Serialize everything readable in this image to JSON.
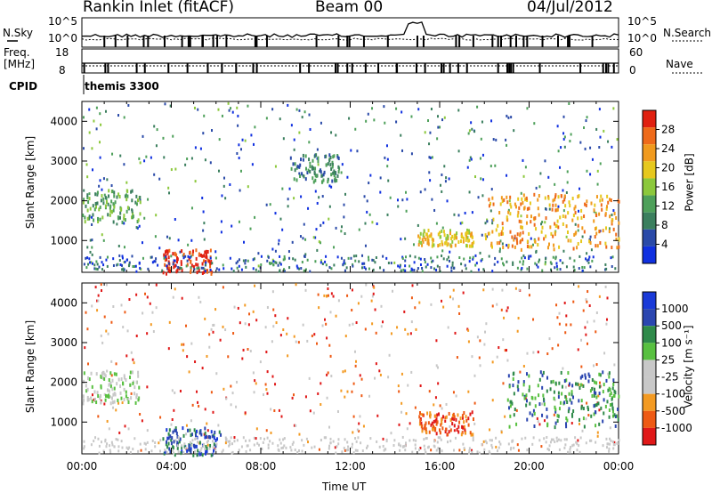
{
  "header": {
    "station": "Rankin Inlet (fitACF)",
    "beam": "Beam 00",
    "date": "04/Jul/2012"
  },
  "strip1": {
    "left_label": "N.Sky",
    "right_label": "N.Search",
    "left_ticks": [
      "10^5",
      "10^0"
    ],
    "right_ticks": [
      "10^5",
      "10^0"
    ]
  },
  "strip2": {
    "left_label_line1": "Freq.",
    "left_label_line2": "[MHz]",
    "right_label": "Nave",
    "left_ticks": [
      "18",
      "8"
    ],
    "right_ticks": [
      "60",
      "0"
    ]
  },
  "cpid": {
    "label": "CPID",
    "value": "themis 3300"
  },
  "colors": {
    "power_scale": [
      "#1030e0",
      "#2a4aa8",
      "#3b7f5e",
      "#4ea05a",
      "#8cc83c",
      "#e6c81e",
      "#f09a1e",
      "#ee6a1a",
      "#e02010"
    ],
    "velocity_scale": [
      "#e01818",
      "#ee5a14",
      "#f39a22",
      "#c8c8c8",
      "#c8c8c8",
      "#58c040",
      "#2f8a4a",
      "#2b46b0",
      "#1a3ad8"
    ]
  },
  "chart_data": [
    {
      "type": "heatmap",
      "panel": "power",
      "ylabel": "Slant Range [km]",
      "yticks": [
        "1000",
        "2000",
        "3000",
        "4000"
      ],
      "ylim": [
        200,
        4500
      ],
      "xlim_hours": [
        0,
        24
      ],
      "colorbar_label": "Power [dB]",
      "colorbar_ticks": [
        "4",
        "8",
        "12",
        "16",
        "20",
        "24",
        "28"
      ],
      "features": [
        {
          "t0": 0.0,
          "t1": 2.6,
          "r0": 1500,
          "r1": 2300,
          "level": 3
        },
        {
          "t0": 3.6,
          "t1": 5.8,
          "r0": 200,
          "r1": 800,
          "level": 8
        },
        {
          "t0": 9.3,
          "t1": 11.5,
          "r0": 2500,
          "r1": 3200,
          "level": 2
        },
        {
          "t0": 15.0,
          "t1": 17.5,
          "r0": 900,
          "r1": 1300,
          "level": 5
        },
        {
          "t0": 18.0,
          "t1": 24.0,
          "r0": 800,
          "r1": 2200,
          "level": 6
        }
      ]
    },
    {
      "type": "heatmap",
      "panel": "velocity",
      "ylabel": "Slant Range [km]",
      "yticks": [
        "1000",
        "2000",
        "3000",
        "4000"
      ],
      "ylim": [
        200,
        4500
      ],
      "xlim_hours": [
        0,
        24
      ],
      "colorbar_label": "Velocity [m s⁻¹]",
      "colorbar_ticks": [
        "1000",
        "500",
        "100",
        "25",
        "-25",
        "-100",
        "-500",
        "-1000"
      ],
      "features": [
        {
          "t0": 0.0,
          "t1": 2.6,
          "r0": 1500,
          "r1": 2300,
          "level": 4
        },
        {
          "t0": 3.6,
          "t1": 6.2,
          "r0": 200,
          "r1": 900,
          "level": 7
        },
        {
          "t0": 15.0,
          "t1": 17.5,
          "r0": 700,
          "r1": 1300,
          "level": 1
        },
        {
          "t0": 19.0,
          "t1": 24.0,
          "r0": 900,
          "r1": 2300,
          "level": 6
        }
      ]
    }
  ],
  "xaxis": {
    "label": "Time UT",
    "ticks": [
      "00:00",
      "04:00",
      "08:00",
      "12:00",
      "16:00",
      "20:00",
      "00:00"
    ]
  }
}
